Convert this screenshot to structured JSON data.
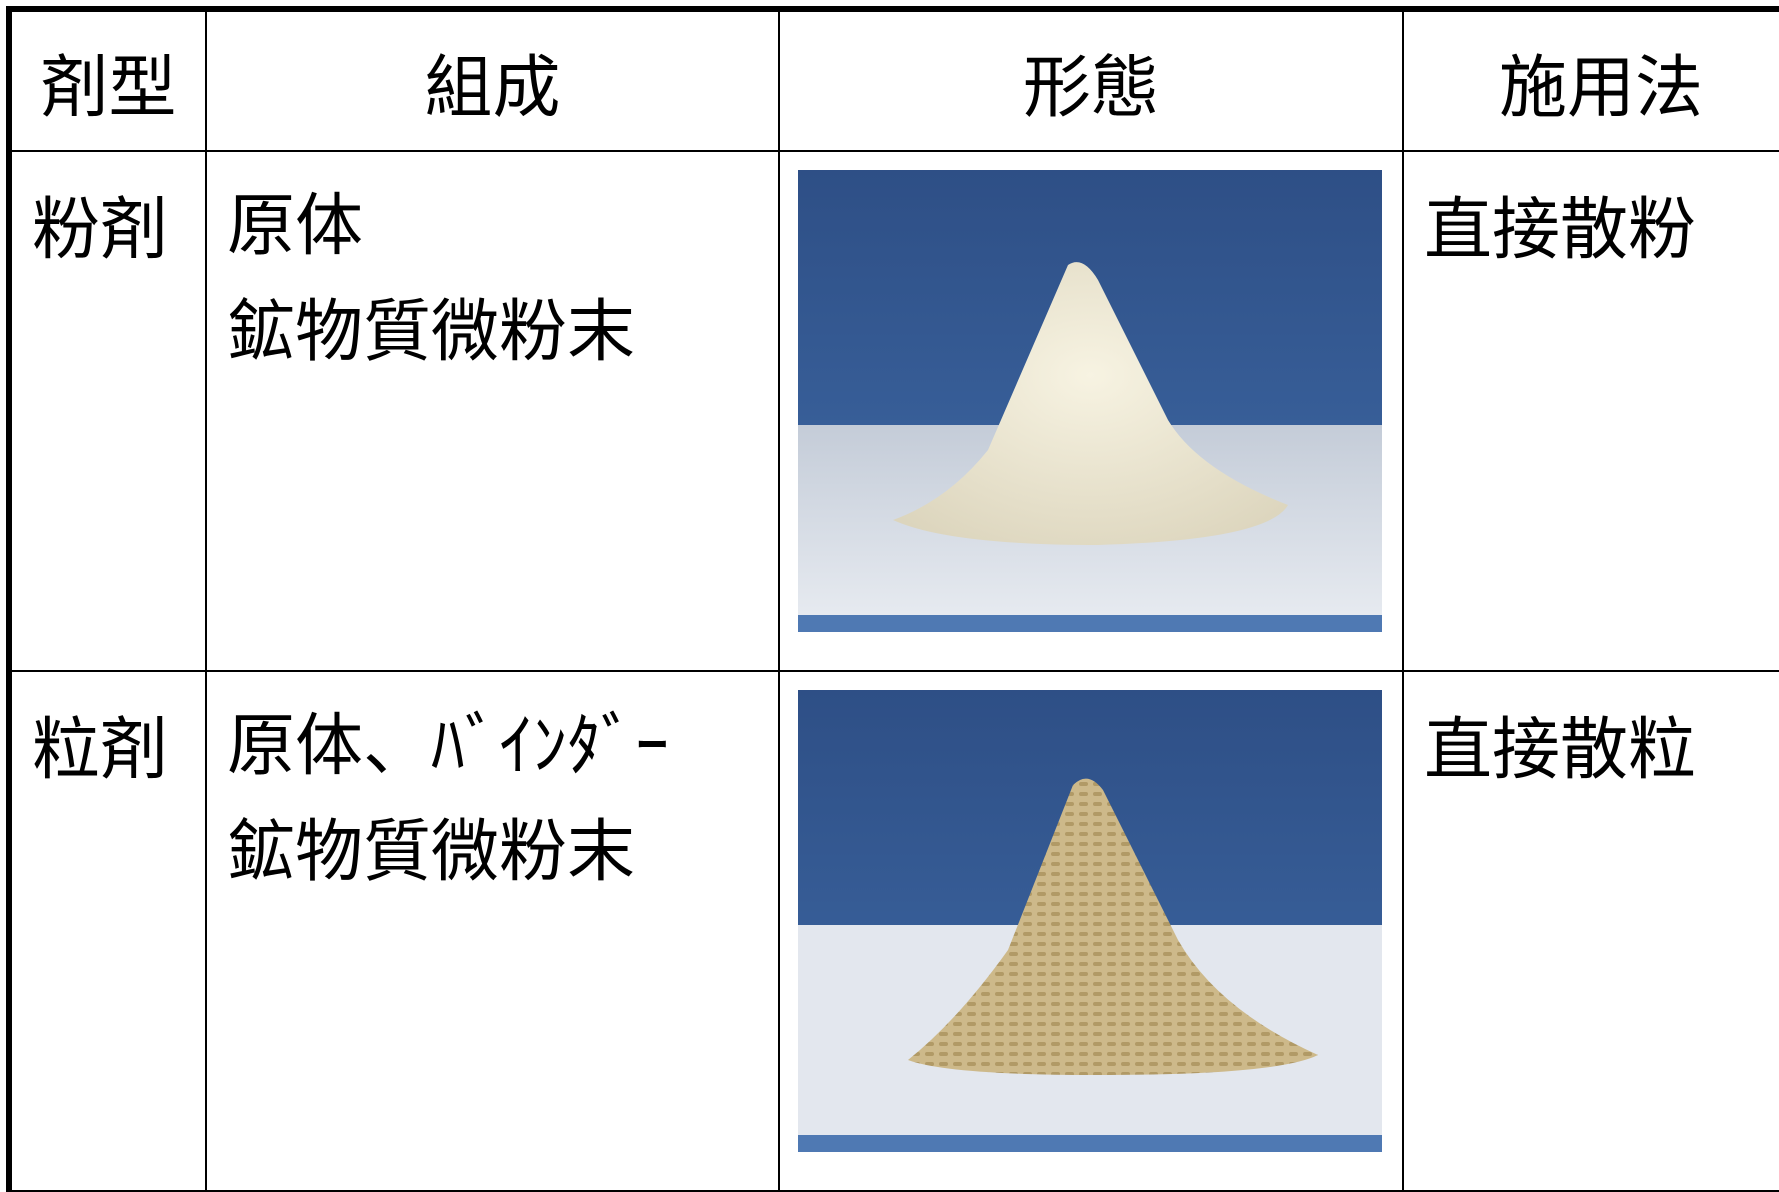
{
  "table": {
    "header": [
      "剤型",
      "組成",
      "形態",
      "施用法"
    ],
    "rows": [
      {
        "type": "粉剤",
        "composition": [
          "原体",
          "鉱物質微粉末"
        ],
        "application": "直接散粉"
      },
      {
        "type": "粒剤",
        "composition": [
          "原体、ﾊﾞｲﾝﾀﾞｰ",
          "鉱物質微粉末"
        ],
        "application": "直接散粒"
      }
    ]
  }
}
